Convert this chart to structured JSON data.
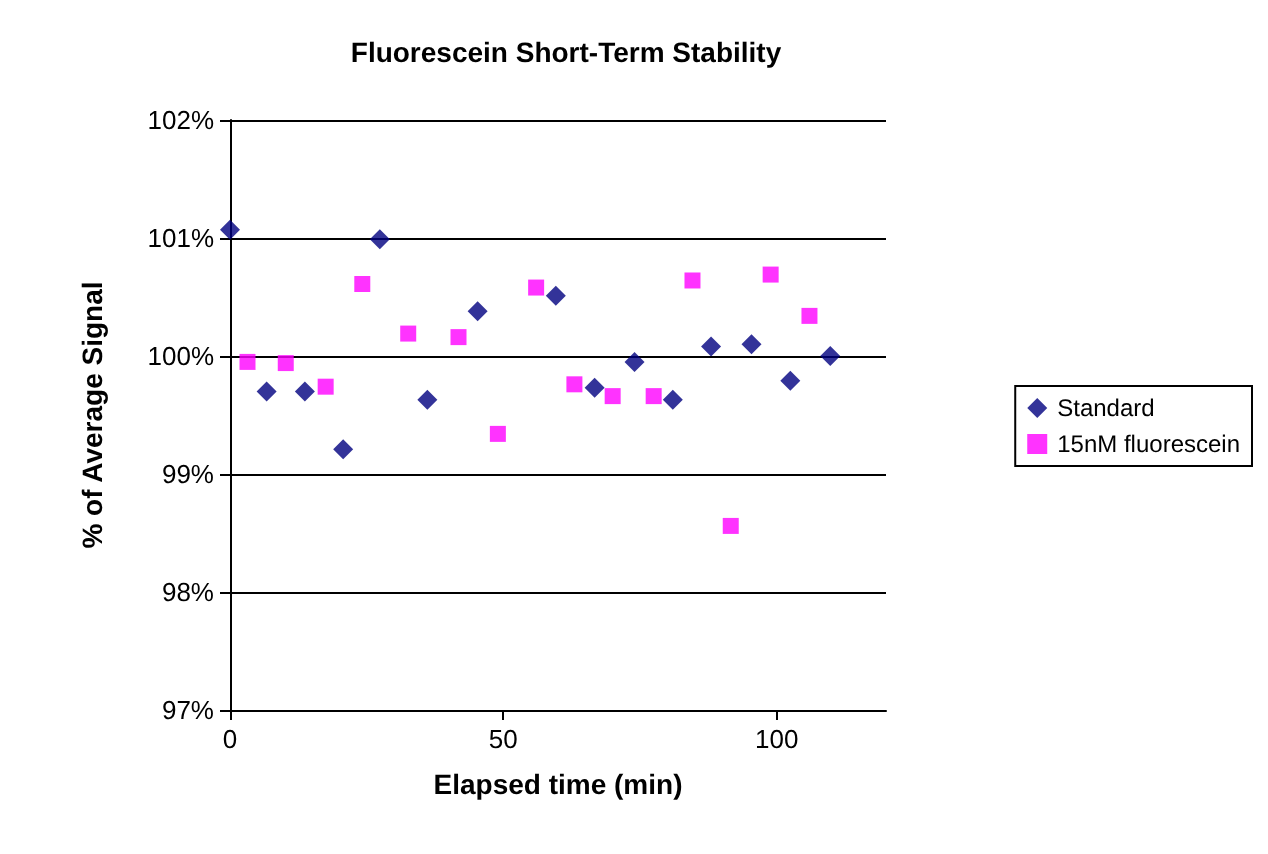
{
  "chart_data": {
    "type": "scatter",
    "title": "Fluorescein Short-Term Stability",
    "xlabel": "Elapsed time (min)",
    "ylabel": "% of Average Signal",
    "xlim": [
      0,
      120
    ],
    "xticks": [
      0,
      50,
      100
    ],
    "ylim": [
      97,
      102
    ],
    "yticks": [
      {
        "value": 97,
        "label": "97%"
      },
      {
        "value": 98,
        "label": "98%"
      },
      {
        "value": 99,
        "label": "99%"
      },
      {
        "value": 100,
        "label": "100%"
      },
      {
        "value": 101,
        "label": "101%"
      },
      {
        "value": 102,
        "label": "102%"
      }
    ],
    "grid": "y",
    "legend": "right",
    "series": [
      {
        "name": "Standard",
        "color": "#000080",
        "marker": "diamond",
        "x": [
          0,
          6.7,
          13.7,
          20.7,
          27.4,
          36.1,
          45.3,
          59.6,
          66.7,
          74,
          81,
          88,
          95.4,
          102.5,
          109.8
        ],
        "values": [
          101.07,
          99.7,
          99.7,
          99.21,
          100.99,
          99.63,
          100.38,
          100.51,
          99.73,
          99.95,
          99.63,
          100.08,
          100.1,
          99.79,
          100.0
        ]
      },
      {
        "name": "15nM fluorescein",
        "color": "#ff00ff",
        "marker": "square",
        "x": [
          3.2,
          10.2,
          17.5,
          24.2,
          32.6,
          41.8,
          49,
          56,
          63,
          70,
          77.5,
          84.6,
          91.6,
          98.9,
          106
        ],
        "values": [
          99.95,
          99.94,
          99.74,
          100.61,
          100.19,
          100.16,
          99.34,
          100.58,
          99.76,
          99.66,
          99.66,
          100.64,
          98.56,
          100.69,
          100.34
        ]
      }
    ]
  }
}
